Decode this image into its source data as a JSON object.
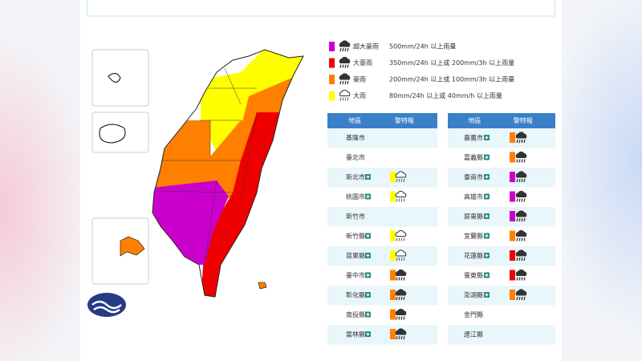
{
  "legend": [
    {
      "label": "超大豪雨",
      "description": "500mm/24h 以上雨量",
      "color": "#cc00cc"
    },
    {
      "label": "大豪雨",
      "description": "350mm/24h 以上或 200mm/3h 以上雨量",
      "color": "#ee0000"
    },
    {
      "label": "豪雨",
      "description": "200mm/24h 以上或 100mm/3h 以上雨量",
      "color": "#ff8000"
    },
    {
      "label": "大雨",
      "description": "80mm/24h 以上或 40mm/h 以上雨量",
      "color": "#ffff00"
    }
  ],
  "tables": [
    {
      "headers": [
        "地區",
        "警特報"
      ],
      "rows": [
        {
          "name": "基隆市",
          "color": null
        },
        {
          "name": "臺北市",
          "color": null
        },
        {
          "name": "新北市",
          "color": "#ffff00"
        },
        {
          "name": "桃園市",
          "color": "#ffff00"
        },
        {
          "name": "新竹市",
          "color": null
        },
        {
          "name": "新竹縣",
          "color": "#ffff00"
        },
        {
          "name": "苗栗縣",
          "color": "#ffff00"
        },
        {
          "name": "臺中市",
          "color": "#ff8000"
        },
        {
          "name": "彰化縣",
          "color": "#ff8000"
        },
        {
          "name": "南投縣",
          "color": "#ff8000"
        },
        {
          "name": "雲林縣",
          "color": "#ff8000"
        }
      ]
    },
    {
      "headers": [
        "地區",
        "警特報"
      ],
      "rows": [
        {
          "name": "嘉義市",
          "color": "#ff8000"
        },
        {
          "name": "嘉義縣",
          "color": "#ff8000"
        },
        {
          "name": "臺南市",
          "color": "#cc00cc"
        },
        {
          "name": "高雄市",
          "color": "#cc00cc"
        },
        {
          "name": "屏東縣",
          "color": "#cc00cc"
        },
        {
          "name": "宜蘭縣",
          "color": "#ff8000"
        },
        {
          "name": "花蓮縣",
          "color": "#ee0000"
        },
        {
          "name": "臺東縣",
          "color": "#ee0000"
        },
        {
          "name": "澎湖縣",
          "color": "#ff8000"
        },
        {
          "name": "金門縣",
          "color": null
        },
        {
          "name": "連江縣",
          "color": null
        }
      ]
    }
  ]
}
